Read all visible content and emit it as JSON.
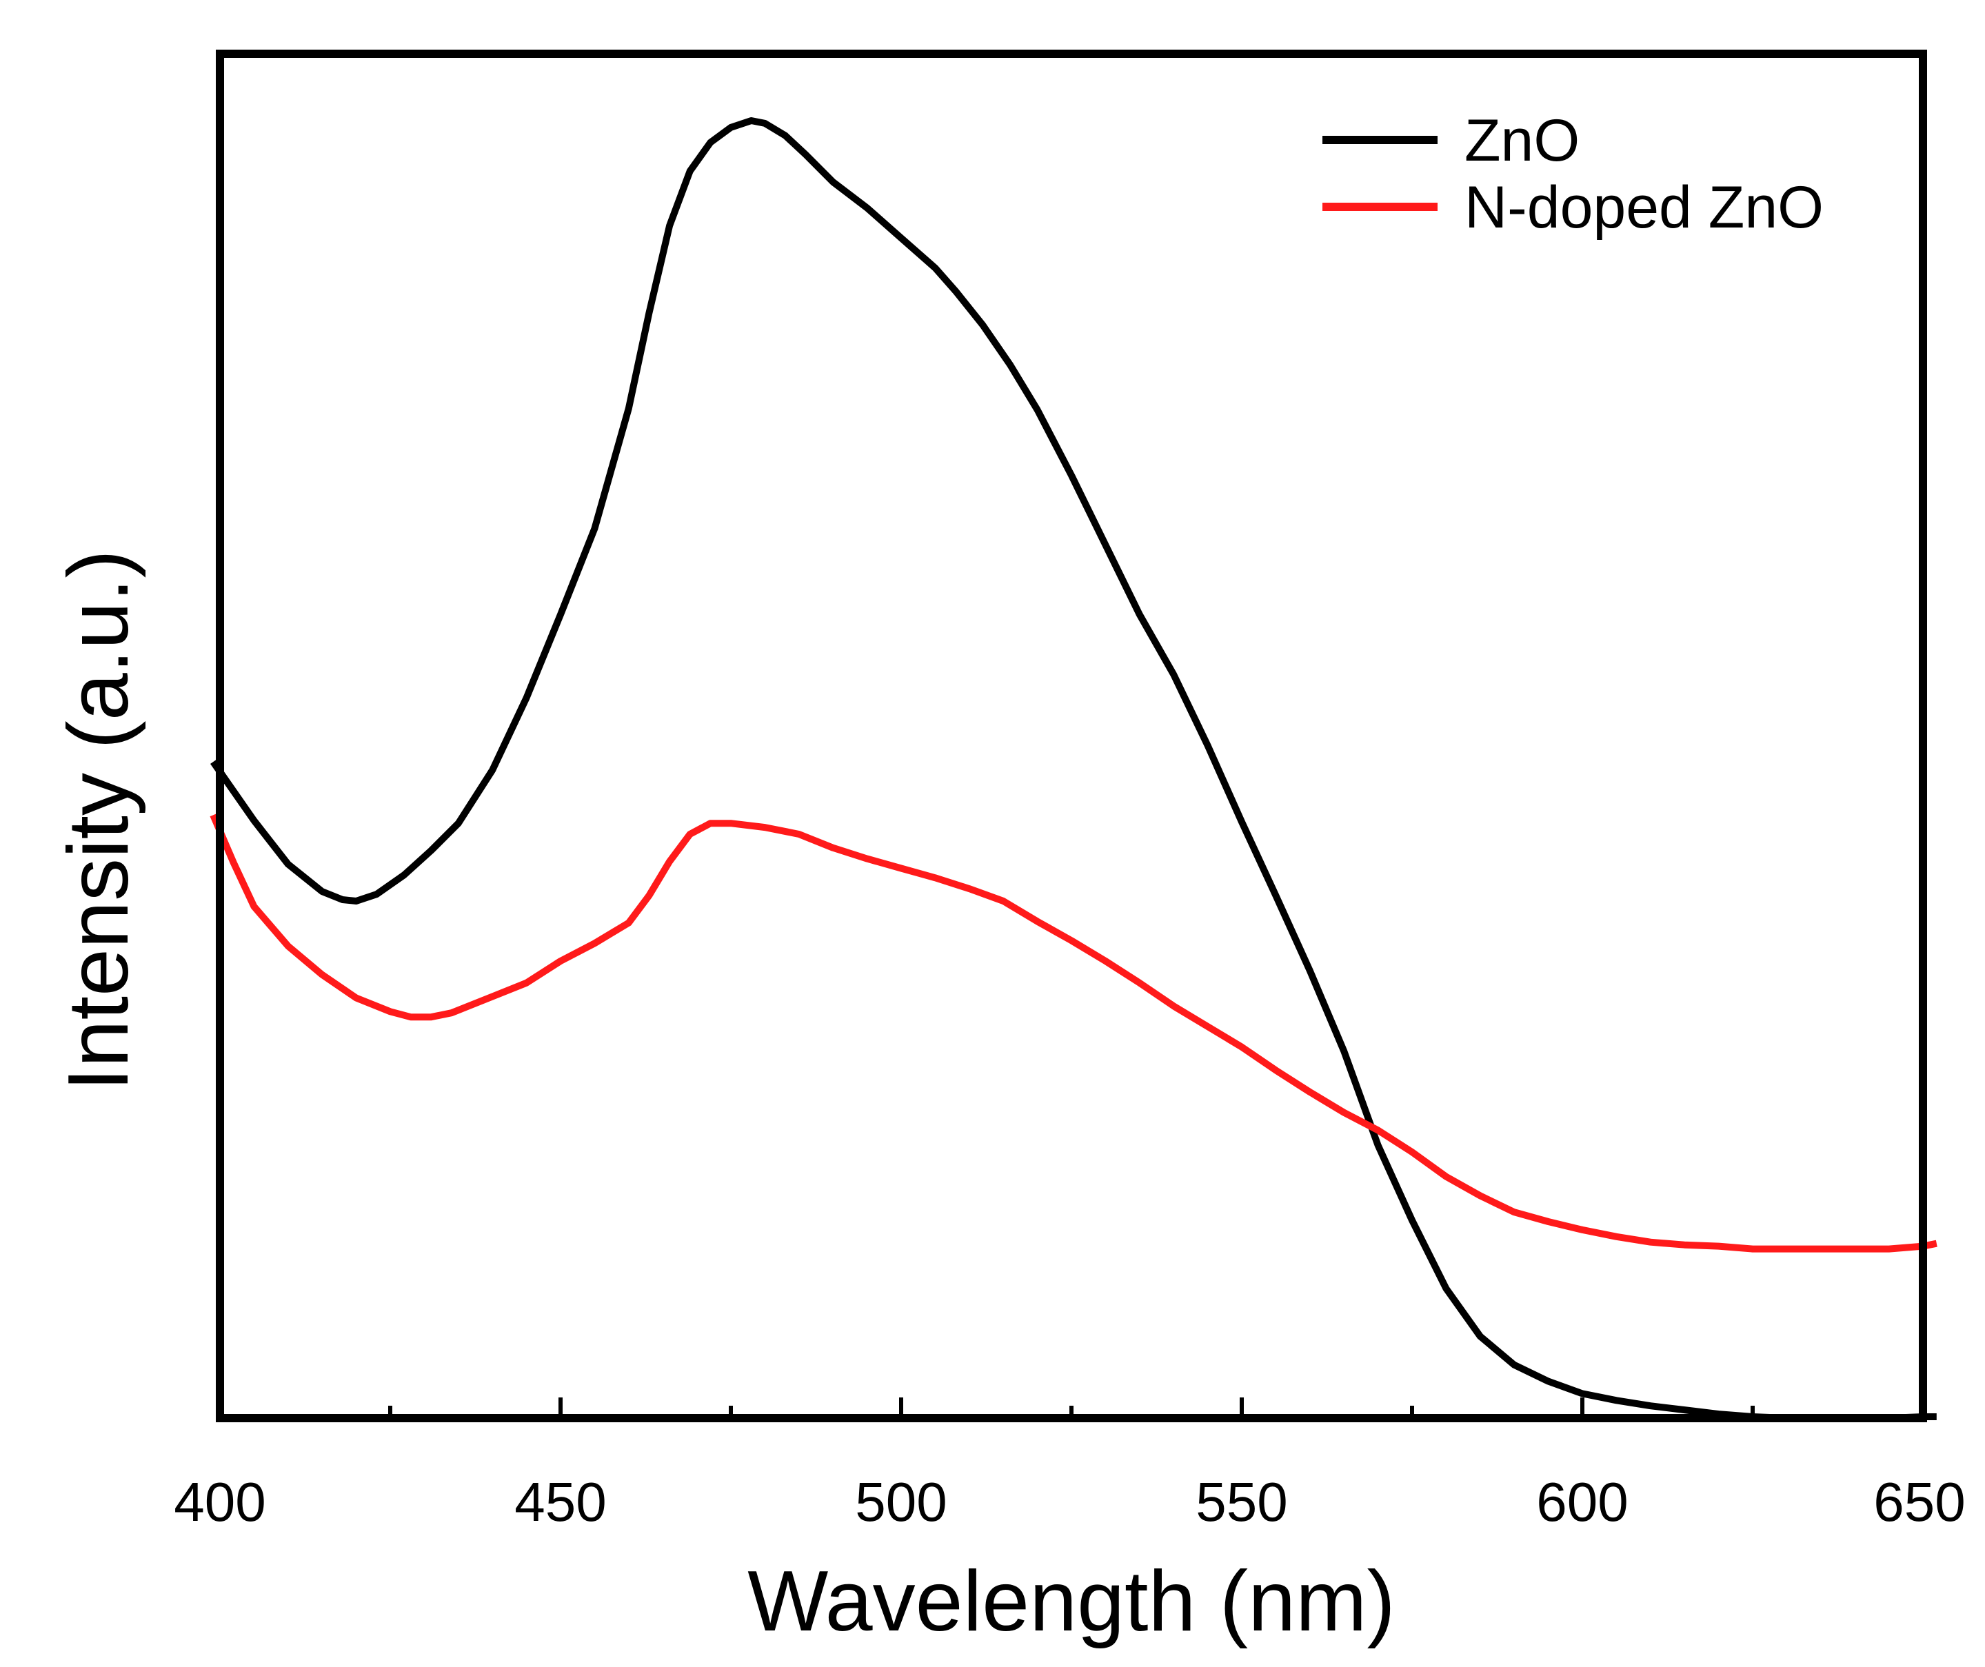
{
  "chart_data": {
    "type": "line",
    "title": "",
    "xlabel": "Wavelength (nm)",
    "ylabel": "Intensity (a.u.)",
    "xlim": [
      400,
      650
    ],
    "ylim": [
      0,
      100
    ],
    "y_ticks_shown": false,
    "grid": false,
    "legend_position": "top-right",
    "x_major_ticks": [
      400,
      450,
      500,
      550,
      600,
      650
    ],
    "x_minor_ticks": [
      425,
      475,
      525,
      575,
      625
    ],
    "series": [
      {
        "name": "ZnO",
        "color": "#000000",
        "x": [
          399,
          405,
          410,
          415,
          418,
          420,
          423,
          427,
          431,
          435,
          440,
          445,
          450,
          455,
          460,
          463,
          466,
          469,
          472,
          475,
          478,
          480,
          483,
          486,
          490,
          495,
          500,
          505,
          508,
          512,
          516,
          520,
          525,
          530,
          535,
          540,
          545,
          550,
          555,
          560,
          565,
          570,
          575,
          580,
          585,
          590,
          595,
          600,
          605,
          610,
          615,
          620,
          625,
          630,
          635,
          640,
          645,
          650,
          652
        ],
        "values": [
          48.1,
          43.8,
          40.6,
          38.6,
          38.0,
          37.9,
          38.4,
          39.8,
          41.6,
          43.6,
          47.5,
          52.8,
          58.9,
          65.2,
          74.0,
          81.0,
          87.4,
          91.4,
          93.5,
          94.6,
          95.1,
          94.9,
          94.0,
          92.6,
          90.6,
          88.7,
          86.5,
          84.3,
          82.6,
          80.1,
          77.2,
          73.9,
          69.1,
          64.0,
          58.9,
          54.5,
          49.3,
          43.7,
          38.3,
          32.8,
          26.9,
          20.0,
          14.5,
          9.5,
          6.0,
          3.9,
          2.7,
          1.8,
          1.3,
          0.9,
          0.6,
          0.3,
          0.1,
          0.0,
          0.0,
          0.0,
          0.0,
          0.1,
          0.1
        ]
      },
      {
        "name": "N-doped ZnO",
        "color": "#ff1a1a",
        "x": [
          399,
          402,
          405,
          410,
          415,
          420,
          425,
          428,
          431,
          434,
          440,
          445,
          450,
          455,
          460,
          463,
          466,
          469,
          472,
          475,
          480,
          485,
          490,
          495,
          500,
          505,
          510,
          515,
          520,
          525,
          530,
          535,
          540,
          545,
          550,
          555,
          560,
          565,
          570,
          575,
          580,
          585,
          590,
          595,
          600,
          605,
          610,
          615,
          620,
          625,
          630,
          635,
          640,
          645,
          650,
          652
        ],
        "values": [
          44.2,
          40.7,
          37.5,
          34.6,
          32.5,
          30.8,
          29.8,
          29.4,
          29.4,
          29.7,
          30.9,
          31.9,
          33.5,
          34.8,
          36.3,
          38.3,
          40.8,
          42.8,
          43.6,
          43.6,
          43.3,
          42.8,
          41.8,
          41.0,
          40.3,
          39.6,
          38.8,
          37.9,
          36.4,
          35.0,
          33.5,
          31.9,
          30.2,
          28.7,
          27.2,
          25.5,
          23.9,
          22.4,
          21.1,
          19.5,
          17.7,
          16.3,
          15.1,
          14.4,
          13.8,
          13.3,
          12.9,
          12.7,
          12.6,
          12.4,
          12.4,
          12.4,
          12.4,
          12.4,
          12.6,
          12.8
        ]
      }
    ]
  }
}
